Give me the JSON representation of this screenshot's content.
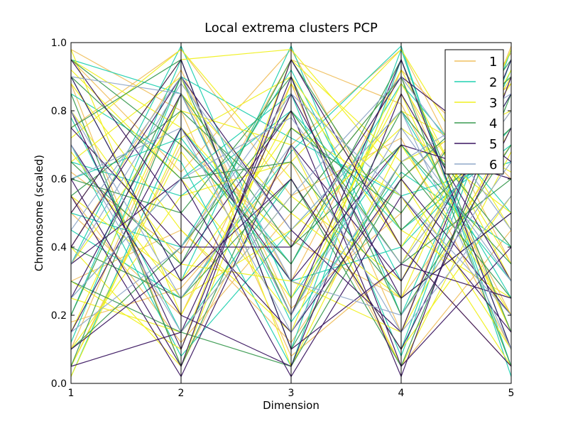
{
  "chart_data": {
    "type": "parallel-coordinates",
    "title": "Local extrema clusters PCP",
    "xlabel": "Dimension",
    "ylabel": "Chromosome (scaled)",
    "x": [
      1,
      2,
      3,
      4,
      5
    ],
    "xlim": [
      1,
      5
    ],
    "ylim": [
      0.0,
      1.0
    ],
    "yticks": [
      "0.0",
      "0.2",
      "0.4",
      "0.6",
      "0.8",
      "1.0"
    ],
    "xticks": [
      "1",
      "2",
      "3",
      "4",
      "5"
    ],
    "grid": false,
    "legend_position": "top-right",
    "series": [
      {
        "name": "1",
        "color": "#f0c060",
        "values": [
          [
            0.95,
            0.62,
            0.98,
            0.4,
            0.05
          ],
          [
            0.1,
            0.85,
            0.3,
            0.92,
            0.6
          ],
          [
            0.5,
            0.2,
            0.88,
            0.15,
            0.99
          ],
          [
            0.75,
            0.98,
            0.55,
            0.72,
            0.1
          ],
          [
            0.3,
            0.45,
            0.12,
            0.6,
            0.88
          ],
          [
            0.88,
            0.05,
            0.7,
            0.98,
            0.35
          ],
          [
            0.05,
            0.7,
            0.42,
            0.25,
            0.7
          ],
          [
            0.62,
            0.38,
            0.95,
            0.82,
            0.2
          ],
          [
            0.4,
            0.92,
            0.22,
            0.5,
            0.97
          ],
          [
            0.18,
            0.28,
            0.65,
            0.05,
            0.45
          ],
          [
            0.98,
            0.8,
            0.08,
            0.35,
            0.8
          ],
          [
            0.55,
            0.12,
            0.5,
            0.9,
            0.15
          ]
        ]
      },
      {
        "name": "2",
        "color": "#20d0b0",
        "values": [
          [
            0.9,
            0.3,
            0.99,
            0.2,
            0.92
          ],
          [
            0.2,
            0.95,
            0.1,
            0.98,
            0.05
          ],
          [
            0.65,
            0.55,
            0.8,
            0.45,
            0.7
          ],
          [
            0.02,
            0.75,
            0.35,
            0.88,
            0.5
          ],
          [
            0.78,
            0.15,
            0.6,
            0.1,
            0.98
          ],
          [
            0.35,
            0.99,
            0.25,
            0.7,
            0.3
          ],
          [
            0.5,
            0.4,
            0.92,
            0.3,
            0.85
          ],
          [
            0.85,
            0.65,
            0.05,
            0.95,
            0.1
          ],
          [
            0.12,
            0.9,
            0.72,
            0.55,
            0.65
          ],
          [
            0.7,
            0.08,
            0.45,
            0.8,
            0.25
          ],
          [
            0.25,
            0.6,
            0.85,
            0.08,
            0.95
          ],
          [
            0.95,
            0.85,
            0.18,
            0.62,
            0.4
          ],
          [
            0.45,
            0.25,
            0.68,
            0.99,
            0.02
          ],
          [
            0.6,
            0.72,
            0.3,
            0.4,
            0.75
          ]
        ]
      },
      {
        "name": "3",
        "color": "#f0f020",
        "values": [
          [
            0.98,
            0.2,
            0.8,
            0.35,
            0.9
          ],
          [
            0.05,
            0.68,
            0.25,
            0.85,
            0.15
          ],
          [
            0.72,
            0.98,
            0.6,
            0.1,
            0.55
          ],
          [
            0.3,
            0.1,
            0.95,
            0.65,
            0.8
          ],
          [
            0.88,
            0.45,
            0.15,
            0.92,
            0.3
          ],
          [
            0.15,
            0.85,
            0.5,
            0.25,
            0.98
          ],
          [
            0.55,
            0.3,
            0.75,
            0.55,
            0.05
          ],
          [
            0.95,
            0.75,
            0.4,
            0.8,
            0.62
          ],
          [
            0.4,
            0.05,
            0.88,
            0.4,
            0.88
          ],
          [
            0.65,
            0.9,
            0.05,
            0.7,
            0.2
          ],
          [
            0.1,
            0.55,
            0.65,
            0.98,
            0.45
          ],
          [
            0.8,
            0.35,
            0.3,
            0.15,
            0.75
          ],
          [
            0.5,
            0.95,
            0.98,
            0.6,
            0.1
          ],
          [
            0.25,
            0.15,
            0.55,
            0.3,
            0.92
          ],
          [
            0.92,
            0.6,
            0.2,
            0.88,
            0.35
          ],
          [
            0.35,
            0.8,
            0.7,
            0.05,
            0.68
          ],
          [
            0.68,
            0.25,
            0.45,
            0.75,
            0.5
          ],
          [
            0.02,
            0.72,
            0.9,
            0.45,
            0.25
          ]
        ]
      },
      {
        "name": "4",
        "color": "#3a9a50",
        "values": [
          [
            0.85,
            0.05,
            0.75,
            0.5,
            0.95
          ],
          [
            0.2,
            0.9,
            0.2,
            0.8,
            0.4
          ],
          [
            0.6,
            0.5,
            0.9,
            0.2,
            0.7
          ],
          [
            0.95,
            0.7,
            0.35,
            0.95,
            0.15
          ],
          [
            0.4,
            0.25,
            0.6,
            0.05,
            0.85
          ],
          [
            0.75,
            0.95,
            0.1,
            0.65,
            0.25
          ],
          [
            0.1,
            0.4,
            0.8,
            0.35,
            0.6
          ],
          [
            0.55,
            0.8,
            0.5,
            0.9,
            0.05
          ],
          [
            0.3,
            0.15,
            0.05,
            0.6,
            0.9
          ],
          [
            0.9,
            0.6,
            0.65,
            0.25,
            0.5
          ],
          [
            0.05,
            0.85,
            0.4,
            0.7,
            0.35
          ],
          [
            0.65,
            0.35,
            0.95,
            0.45,
            0.75
          ]
        ]
      },
      {
        "name": "5",
        "color": "#3a1560",
        "values": [
          [
            0.8,
            0.1,
            0.9,
            0.05,
            0.4
          ],
          [
            0.25,
            0.85,
            0.2,
            0.95,
            0.1
          ],
          [
            0.55,
            0.02,
            0.7,
            0.3,
            0.85
          ],
          [
            0.95,
            0.5,
            0.15,
            0.6,
            0.2
          ],
          [
            0.1,
            0.35,
            0.8,
            0.02,
            0.9
          ],
          [
            0.7,
            0.2,
            0.05,
            0.85,
            0.3
          ],
          [
            0.4,
            0.9,
            0.45,
            0.15,
            0.95
          ],
          [
            0.6,
            0.05,
            0.95,
            0.4,
            0.05
          ],
          [
            0.15,
            0.75,
            0.3,
            0.7,
            0.6
          ],
          [
            0.9,
            0.3,
            0.6,
            0.1,
            0.75
          ],
          [
            0.35,
            0.6,
            0.02,
            0.55,
            0.15
          ],
          [
            0.05,
            0.15,
            0.85,
            0.25,
            0.5
          ],
          [
            0.75,
            0.4,
            0.4,
            0.9,
            0.65
          ],
          [
            0.5,
            0.95,
            0.1,
            0.35,
            0.25
          ]
        ]
      },
      {
        "name": "6",
        "color": "#90a8c8",
        "values": [
          [
            0.9,
            0.85,
            0.2,
            0.75,
            0.3
          ],
          [
            0.25,
            0.6,
            0.78,
            0.35,
            0.8
          ],
          [
            0.7,
            0.15,
            0.55,
            0.9,
            0.45
          ],
          [
            0.45,
            0.9,
            0.3,
            0.2,
            0.65
          ],
          [
            0.15,
            0.4,
            0.85,
            0.55,
            0.2
          ],
          [
            0.6,
            0.75,
            0.15,
            0.65,
            0.85
          ],
          [
            0.8,
            0.25,
            0.7,
            0.15,
            0.55
          ],
          [
            0.35,
            0.88,
            0.45,
            0.8,
            0.1
          ]
        ]
      }
    ]
  }
}
